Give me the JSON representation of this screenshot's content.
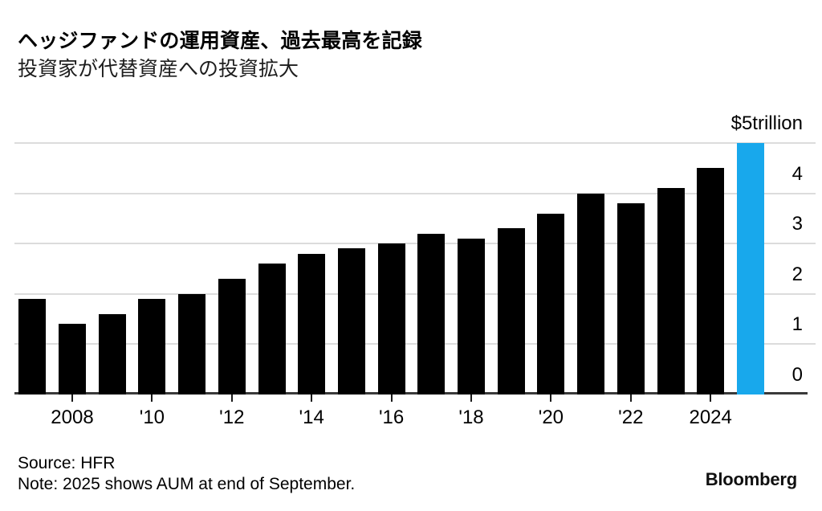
{
  "header": {
    "title": "ヘッジファンドの運用資産、過去最高を記録",
    "subtitle": "投資家が代替資産への投資拡大"
  },
  "chart_data": {
    "type": "bar",
    "title": "ヘッジファンドの運用資産、過去最高を記録",
    "subtitle": "投資家が代替資産への投資拡大",
    "unit": "USD trillion",
    "categories": [
      "2007",
      "2008",
      "2009",
      "2010",
      "2011",
      "2012",
      "2013",
      "2014",
      "2015",
      "2016",
      "2017",
      "2018",
      "2019",
      "2020",
      "2021",
      "2022",
      "2023",
      "2024",
      "2025"
    ],
    "values": [
      1.9,
      1.4,
      1.6,
      1.9,
      2.0,
      2.3,
      2.6,
      2.8,
      2.9,
      3.0,
      3.2,
      3.1,
      3.3,
      3.6,
      4.0,
      3.8,
      4.1,
      4.5,
      5.0
    ],
    "highlight_category": "2025",
    "y_axis": {
      "range": [
        0,
        5
      ],
      "tick_labels": [
        "0",
        "1",
        "2",
        "3",
        "4"
      ],
      "top_label": "$5trillion",
      "side": "right"
    },
    "x_axis": {
      "tick_labels": [
        {
          "at": "2008",
          "label": "2008"
        },
        {
          "at": "2010",
          "label": "'10"
        },
        {
          "at": "2012",
          "label": "'12"
        },
        {
          "at": "2014",
          "label": "'14"
        },
        {
          "at": "2016",
          "label": "'16"
        },
        {
          "at": "2018",
          "label": "'18"
        },
        {
          "at": "2020",
          "label": "'20"
        },
        {
          "at": "2022",
          "label": "'22"
        },
        {
          "at": "2024",
          "label": "2024"
        }
      ]
    },
    "grid": true,
    "legend": "none",
    "colors": {
      "bar": "#000000",
      "highlight": "#18a8ec",
      "gridline": "#dcdcdc",
      "axis": "#3a3a3a",
      "text": "#000000"
    }
  },
  "footer": {
    "source": "Source: HFR",
    "note": "Note: 2025 shows AUM at end of September.",
    "brand": "Bloomberg"
  }
}
